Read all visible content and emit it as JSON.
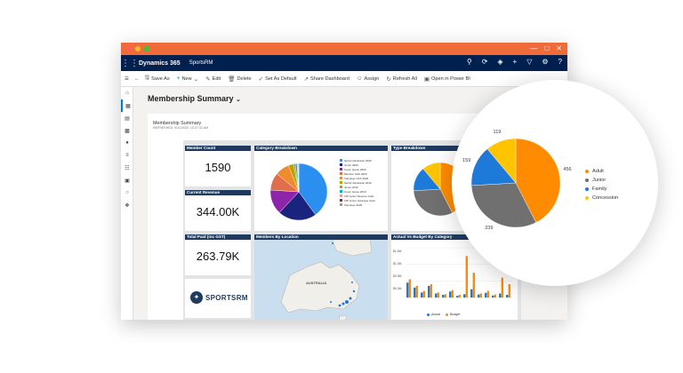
{
  "colors": {
    "titlebar": "#ef6b3a",
    "navbar": "#002050",
    "tile_header": "#1f3a5f",
    "accent": "#0078d4"
  },
  "topbar": {
    "brand": "Dynamics 365",
    "app": "SportsRM"
  },
  "commands": [
    {
      "icon": "save-as-icon",
      "label": "Save As"
    },
    {
      "icon": "plus-icon",
      "label": "New"
    },
    {
      "icon": "edit-icon",
      "label": "Edit"
    },
    {
      "icon": "delete-icon",
      "label": "Delete"
    },
    {
      "icon": "check-icon",
      "label": "Set As Default"
    },
    {
      "icon": "share-icon",
      "label": "Share Dashboard"
    },
    {
      "icon": "assign-icon",
      "label": "Assign"
    },
    {
      "icon": "refresh-icon",
      "label": "Refresh All"
    },
    {
      "icon": "powerbi-icon",
      "label": "Open in Power BI"
    }
  ],
  "dashboard": {
    "title": "Membership Summary"
  },
  "report": {
    "title": "Membership Summary",
    "refreshed": "REFRESHED: 9/11/2020, 10:27:32 AM",
    "tiles": {
      "member_count": {
        "title": "Member Count",
        "value": "1590"
      },
      "current_revenue": {
        "title": "Current Revenue",
        "value": "344.00K"
      },
      "total_paid": {
        "title": "Total Paid (inc GST)",
        "value": "263.79K"
      },
      "category_breakdown": {
        "title": "Category Breakdown"
      },
      "type_breakdown": {
        "title": "Type Breakdown"
      },
      "members_by_location": {
        "title": "Members By Location",
        "map_label": "AUSTRALIA"
      },
      "actual_vs_budget": {
        "title": "Actual Vs Budget By Category",
        "legend": [
          "Actual",
          "Budget"
        ],
        "y_ticks": [
          "$1.5M",
          "$1.0M",
          "$0.5M",
          "$0.0M"
        ]
      }
    },
    "logo_text": "SPORTSRM"
  },
  "chart_data": [
    {
      "type": "pie",
      "title": "Category Breakdown",
      "categories": [
        "Senior Admission 2020",
        "Junior 2020",
        "Cover Game 2020",
        "Member Club 2020",
        "Volunteer Club 2020",
        "Senior Admission 2019",
        "Junior 2019",
        "Cover Game 2019",
        "VIP Junior Reserve Gold",
        "VIP Junior Volunteer Gold",
        "Volunteer 2020"
      ],
      "values": [
        40,
        22,
        14,
        10,
        8,
        3,
        1,
        1,
        0.5,
        0.3,
        0.2
      ],
      "colors": [
        "#2b8ff0",
        "#1a237e",
        "#8e24aa",
        "#e06d4c",
        "#ef8b2c",
        "#c0a000",
        "#7cb342",
        "#00acc1",
        "#f48fb1",
        "#5d4037",
        "#9e9e9e"
      ]
    },
    {
      "type": "pie",
      "title": "Type Breakdown",
      "categories": [
        "Adult",
        "Junior",
        "Family",
        "Concession"
      ],
      "values": [
        456,
        339,
        159,
        119
      ],
      "colors": [
        "#ff8c00",
        "#707070",
        "#1e7ad8",
        "#ffc400"
      ]
    },
    {
      "type": "bar",
      "title": "Actual Vs Budget By Category",
      "series": [
        {
          "name": "Actual",
          "values": [
            0.45,
            0.3,
            0.15,
            0.35,
            0.12,
            0.08,
            0.18,
            0.05,
            0.1,
            0.25,
            0.09,
            0.14,
            0.06,
            0.12,
            0.08
          ]
        },
        {
          "name": "Budget",
          "values": [
            0.55,
            0.35,
            0.2,
            0.4,
            0.15,
            0.1,
            0.22,
            0.08,
            1.25,
            0.75,
            0.12,
            0.2,
            0.09,
            0.6,
            0.4
          ]
        }
      ],
      "ylim": [
        0,
        1.5
      ]
    }
  ]
}
